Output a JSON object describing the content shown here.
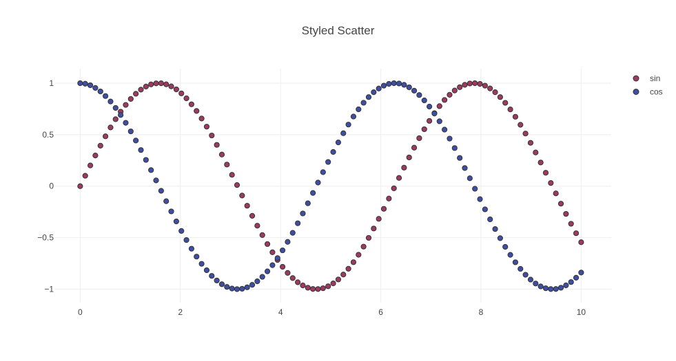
{
  "chart_data": {
    "type": "scatter",
    "title": "Styled Scatter",
    "xlabel": "",
    "ylabel": "",
    "xlim": [
      -0.5,
      10.6
    ],
    "ylim": [
      -1.13,
      1.14
    ],
    "x_ticks": [
      0,
      2,
      4,
      6,
      8,
      10
    ],
    "x_tick_labels": [
      "0",
      "2",
      "4",
      "6",
      "8",
      "10"
    ],
    "y_ticks": [
      1,
      0.5,
      0,
      -0.5,
      -1
    ],
    "y_tick_labels": [
      "1",
      "0.5",
      "0",
      "−0.5",
      "−1"
    ],
    "grid": true,
    "legend_position": "top-right",
    "point_count": 100,
    "x": [
      0,
      0.101,
      0.202,
      0.303,
      0.404,
      0.505,
      0.606,
      0.707,
      0.808,
      0.909,
      1.01,
      1.111,
      1.212,
      1.313,
      1.414,
      1.515,
      1.616,
      1.717,
      1.818,
      1.919,
      2.02,
      2.121,
      2.222,
      2.323,
      2.424,
      2.525,
      2.626,
      2.727,
      2.828,
      2.929,
      3.03,
      3.131,
      3.232,
      3.333,
      3.434,
      3.535,
      3.636,
      3.737,
      3.838,
      3.939,
      4.04,
      4.141,
      4.242,
      4.343,
      4.444,
      4.545,
      4.646,
      4.747,
      4.848,
      4.949,
      5.051,
      5.152,
      5.253,
      5.354,
      5.455,
      5.556,
      5.657,
      5.758,
      5.859,
      5.96,
      6.061,
      6.162,
      6.263,
      6.364,
      6.465,
      6.566,
      6.667,
      6.768,
      6.869,
      6.97,
      7.071,
      7.172,
      7.273,
      7.374,
      7.475,
      7.576,
      7.677,
      7.778,
      7.879,
      7.98,
      8.081,
      8.182,
      8.283,
      8.384,
      8.485,
      8.586,
      8.687,
      8.788,
      8.889,
      8.99,
      9.091,
      9.192,
      9.293,
      9.394,
      9.495,
      9.596,
      9.697,
      9.798,
      9.899,
      10
    ],
    "series": [
      {
        "name": "sin",
        "color": "#9c3a62",
        "y": [
          0,
          0.101,
          0.201,
          0.298,
          0.393,
          0.484,
          0.57,
          0.65,
          0.723,
          0.789,
          0.847,
          0.897,
          0.937,
          0.967,
          0.988,
          0.998,
          0.999,
          0.989,
          0.969,
          0.94,
          0.901,
          0.853,
          0.795,
          0.73,
          0.657,
          0.578,
          0.492,
          0.401,
          0.307,
          0.21,
          0.11,
          0.011,
          -0.091,
          -0.19,
          -0.288,
          -0.384,
          -0.475,
          -0.562,
          -0.642,
          -0.716,
          -0.783,
          -0.842,
          -0.892,
          -0.933,
          -0.964,
          -0.986,
          -0.998,
          -0.999,
          -0.991,
          -0.972,
          -0.944,
          -0.906,
          -0.858,
          -0.802,
          -0.738,
          -0.666,
          -0.587,
          -0.502,
          -0.411,
          -0.317,
          -0.22,
          -0.12,
          -0.021,
          0.08,
          0.18,
          0.279,
          0.374,
          0.466,
          0.553,
          0.634,
          0.709,
          0.777,
          0.837,
          0.887,
          0.929,
          0.961,
          0.984,
          0.997,
          1.0,
          0.993,
          0.976,
          0.949,
          0.912,
          0.865,
          0.809,
          0.745,
          0.674,
          0.596,
          0.511,
          0.421,
          0.327,
          0.23,
          0.13,
          0.031,
          -0.07,
          -0.17,
          -0.269,
          -0.365,
          -0.457,
          -0.544
        ],
        "marker_line_color": "#333333"
      },
      {
        "name": "cos",
        "color": "#3e4fa3",
        "y": [
          1,
          0.995,
          0.98,
          0.954,
          0.92,
          0.875,
          0.822,
          0.76,
          0.691,
          0.615,
          0.532,
          0.443,
          0.351,
          0.255,
          0.156,
          0.056,
          -0.045,
          -0.146,
          -0.245,
          -0.342,
          -0.435,
          -0.523,
          -0.607,
          -0.684,
          -0.754,
          -0.816,
          -0.871,
          -0.916,
          -0.952,
          -0.978,
          -0.994,
          -1.0,
          -0.996,
          -0.982,
          -0.958,
          -0.924,
          -0.88,
          -0.827,
          -0.767,
          -0.698,
          -0.623,
          -0.541,
          -0.453,
          -0.36,
          -0.265,
          -0.166,
          -0.066,
          0.035,
          0.136,
          0.235,
          0.332,
          0.425,
          0.514,
          0.598,
          0.676,
          0.746,
          0.81,
          0.865,
          0.912,
          0.948,
          0.976,
          0.993,
          1.0,
          0.997,
          0.984,
          0.96,
          0.927,
          0.885,
          0.833,
          0.773,
          0.705,
          0.63,
          0.549,
          0.462,
          0.37,
          0.274,
          0.176,
          0.077,
          -0.025,
          -0.126,
          -0.225,
          -0.322,
          -0.416,
          -0.505,
          -0.589,
          -0.667,
          -0.739,
          -0.803,
          -0.86,
          -0.907,
          -0.945,
          -0.973,
          -0.991,
          -0.999,
          -0.998,
          -0.986,
          -0.963,
          -0.931,
          -0.889,
          -0.839
        ],
        "marker_line_color": "#333333"
      }
    ]
  }
}
